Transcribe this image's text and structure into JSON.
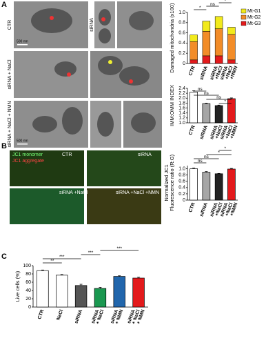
{
  "panel_labels": [
    "A",
    "B",
    "C"
  ],
  "micrographs": {
    "row_labels": [
      "CTR",
      "siRNA + NaCl",
      "siRNA + NaCl + NMN"
    ],
    "column_label": "siRNA",
    "scale_bar": "500 nm"
  },
  "fluorescence": {
    "legend": [
      "JC1 monomer",
      "JC1 aggregate"
    ],
    "labels": [
      "CTR",
      "siRNA",
      "siRNA +NaCl",
      "siRNA +NaCl +NMN"
    ]
  },
  "chart_data": [
    {
      "type": "stacked_bar",
      "ylabel": [
        "Damaged mitochondria (x100)"
      ],
      "categories": [
        [
          "CTR"
        ],
        [
          "siRNA"
        ],
        [
          "siRNA",
          "+NaCl"
        ],
        [
          "siRNA",
          "+NaCl",
          "+NMN"
        ]
      ],
      "series": [
        {
          "name": "Mt-G1",
          "color": "#f2ea1c",
          "values": [
            0.13,
            0.2,
            0.24,
            0.14
          ]
        },
        {
          "name": "Mt-G2",
          "color": "#f28c28",
          "values": [
            0.36,
            0.48,
            0.53,
            0.5
          ]
        },
        {
          "name": "Mt-G3",
          "color": "#e31a1c",
          "values": [
            0.07,
            0.15,
            0.15,
            0.07
          ]
        }
      ],
      "ylim": [
        0,
        1
      ],
      "yticks": [
        0,
        0.2,
        0.4,
        0.6,
        0.8,
        {
          "value": 1,
          "label": "1.0"
        }
      ],
      "legend": "right",
      "annotations": [
        "*",
        "ns",
        "*",
        "*"
      ]
    },
    {
      "type": "bar",
      "ylabel": [
        "IMM:OMM INDEX"
      ],
      "categories": [
        [
          "CTR"
        ],
        [
          "siRNA"
        ],
        [
          "siRNA",
          "+NaCl"
        ],
        [
          "siRNA",
          "+NaCl",
          "+NMN"
        ]
      ],
      "values": [
        2.25,
        1.78,
        1.7,
        1.98
      ],
      "errors": [
        0.05,
        0.02,
        0.02,
        0.03
      ],
      "colors": [
        "#ffffff",
        "#a6a6a6",
        "#222222",
        "#e31a1c"
      ],
      "ylim": [
        1,
        2.4
      ],
      "yticks": [
        {
          "value": 1,
          "label": "1.0"
        },
        1.2,
        1.4,
        1.6,
        1.8,
        {
          "value": 2,
          "label": "2.0"
        },
        2.2,
        2.4
      ],
      "annotations": [
        "ns",
        "ns",
        "ns",
        "*"
      ]
    },
    {
      "type": "bar",
      "ylabel": [
        "Normalized JC1",
        "Fluorescence ratio (R:G)"
      ],
      "categories": [
        [
          "CTR"
        ],
        [
          "siRNA"
        ],
        [
          "siRNA",
          "+NaCl"
        ],
        [
          "siRNA",
          "+NaCl",
          "+NMN"
        ]
      ],
      "values": [
        1,
        0.89,
        0.84,
        0.99
      ],
      "errors": [
        0.02,
        0.02,
        0.01,
        0.02
      ],
      "colors": [
        "#ffffff",
        "#a6a6a6",
        "#222222",
        "#e31a1c"
      ],
      "ylim": [
        0,
        1.1
      ],
      "yticks": [
        0,
        0.2,
        0.4,
        0.6,
        0.8,
        {
          "value": 1,
          "label": "1.0"
        }
      ],
      "annotations": [
        "ns",
        "ns",
        "*",
        "*"
      ]
    },
    {
      "type": "bar",
      "ylabel": [
        "Live cells (%)"
      ],
      "categories": [
        [
          "CTR"
        ],
        [
          "NaCl"
        ],
        [
          "siRNA"
        ],
        [
          "siRNA",
          "+ NaCl"
        ],
        [
          "siRNA",
          "+ NMN"
        ],
        [
          "siRNA",
          "+ NaCl",
          "+ NMN"
        ]
      ],
      "values": [
        88,
        77,
        52,
        45,
        74,
        70
      ],
      "errors": [
        1.5,
        1.5,
        3,
        2.5,
        1.5,
        2
      ],
      "colors": [
        "#ffffff",
        "#ffffff",
        "#555555",
        "#1a9850",
        "#2166ac",
        "#e31a1c"
      ],
      "ylim": [
        0,
        100
      ],
      "yticks": [
        0,
        20,
        40,
        60,
        80,
        100
      ],
      "annotations": [
        "**",
        "***",
        "***",
        "***"
      ]
    }
  ]
}
